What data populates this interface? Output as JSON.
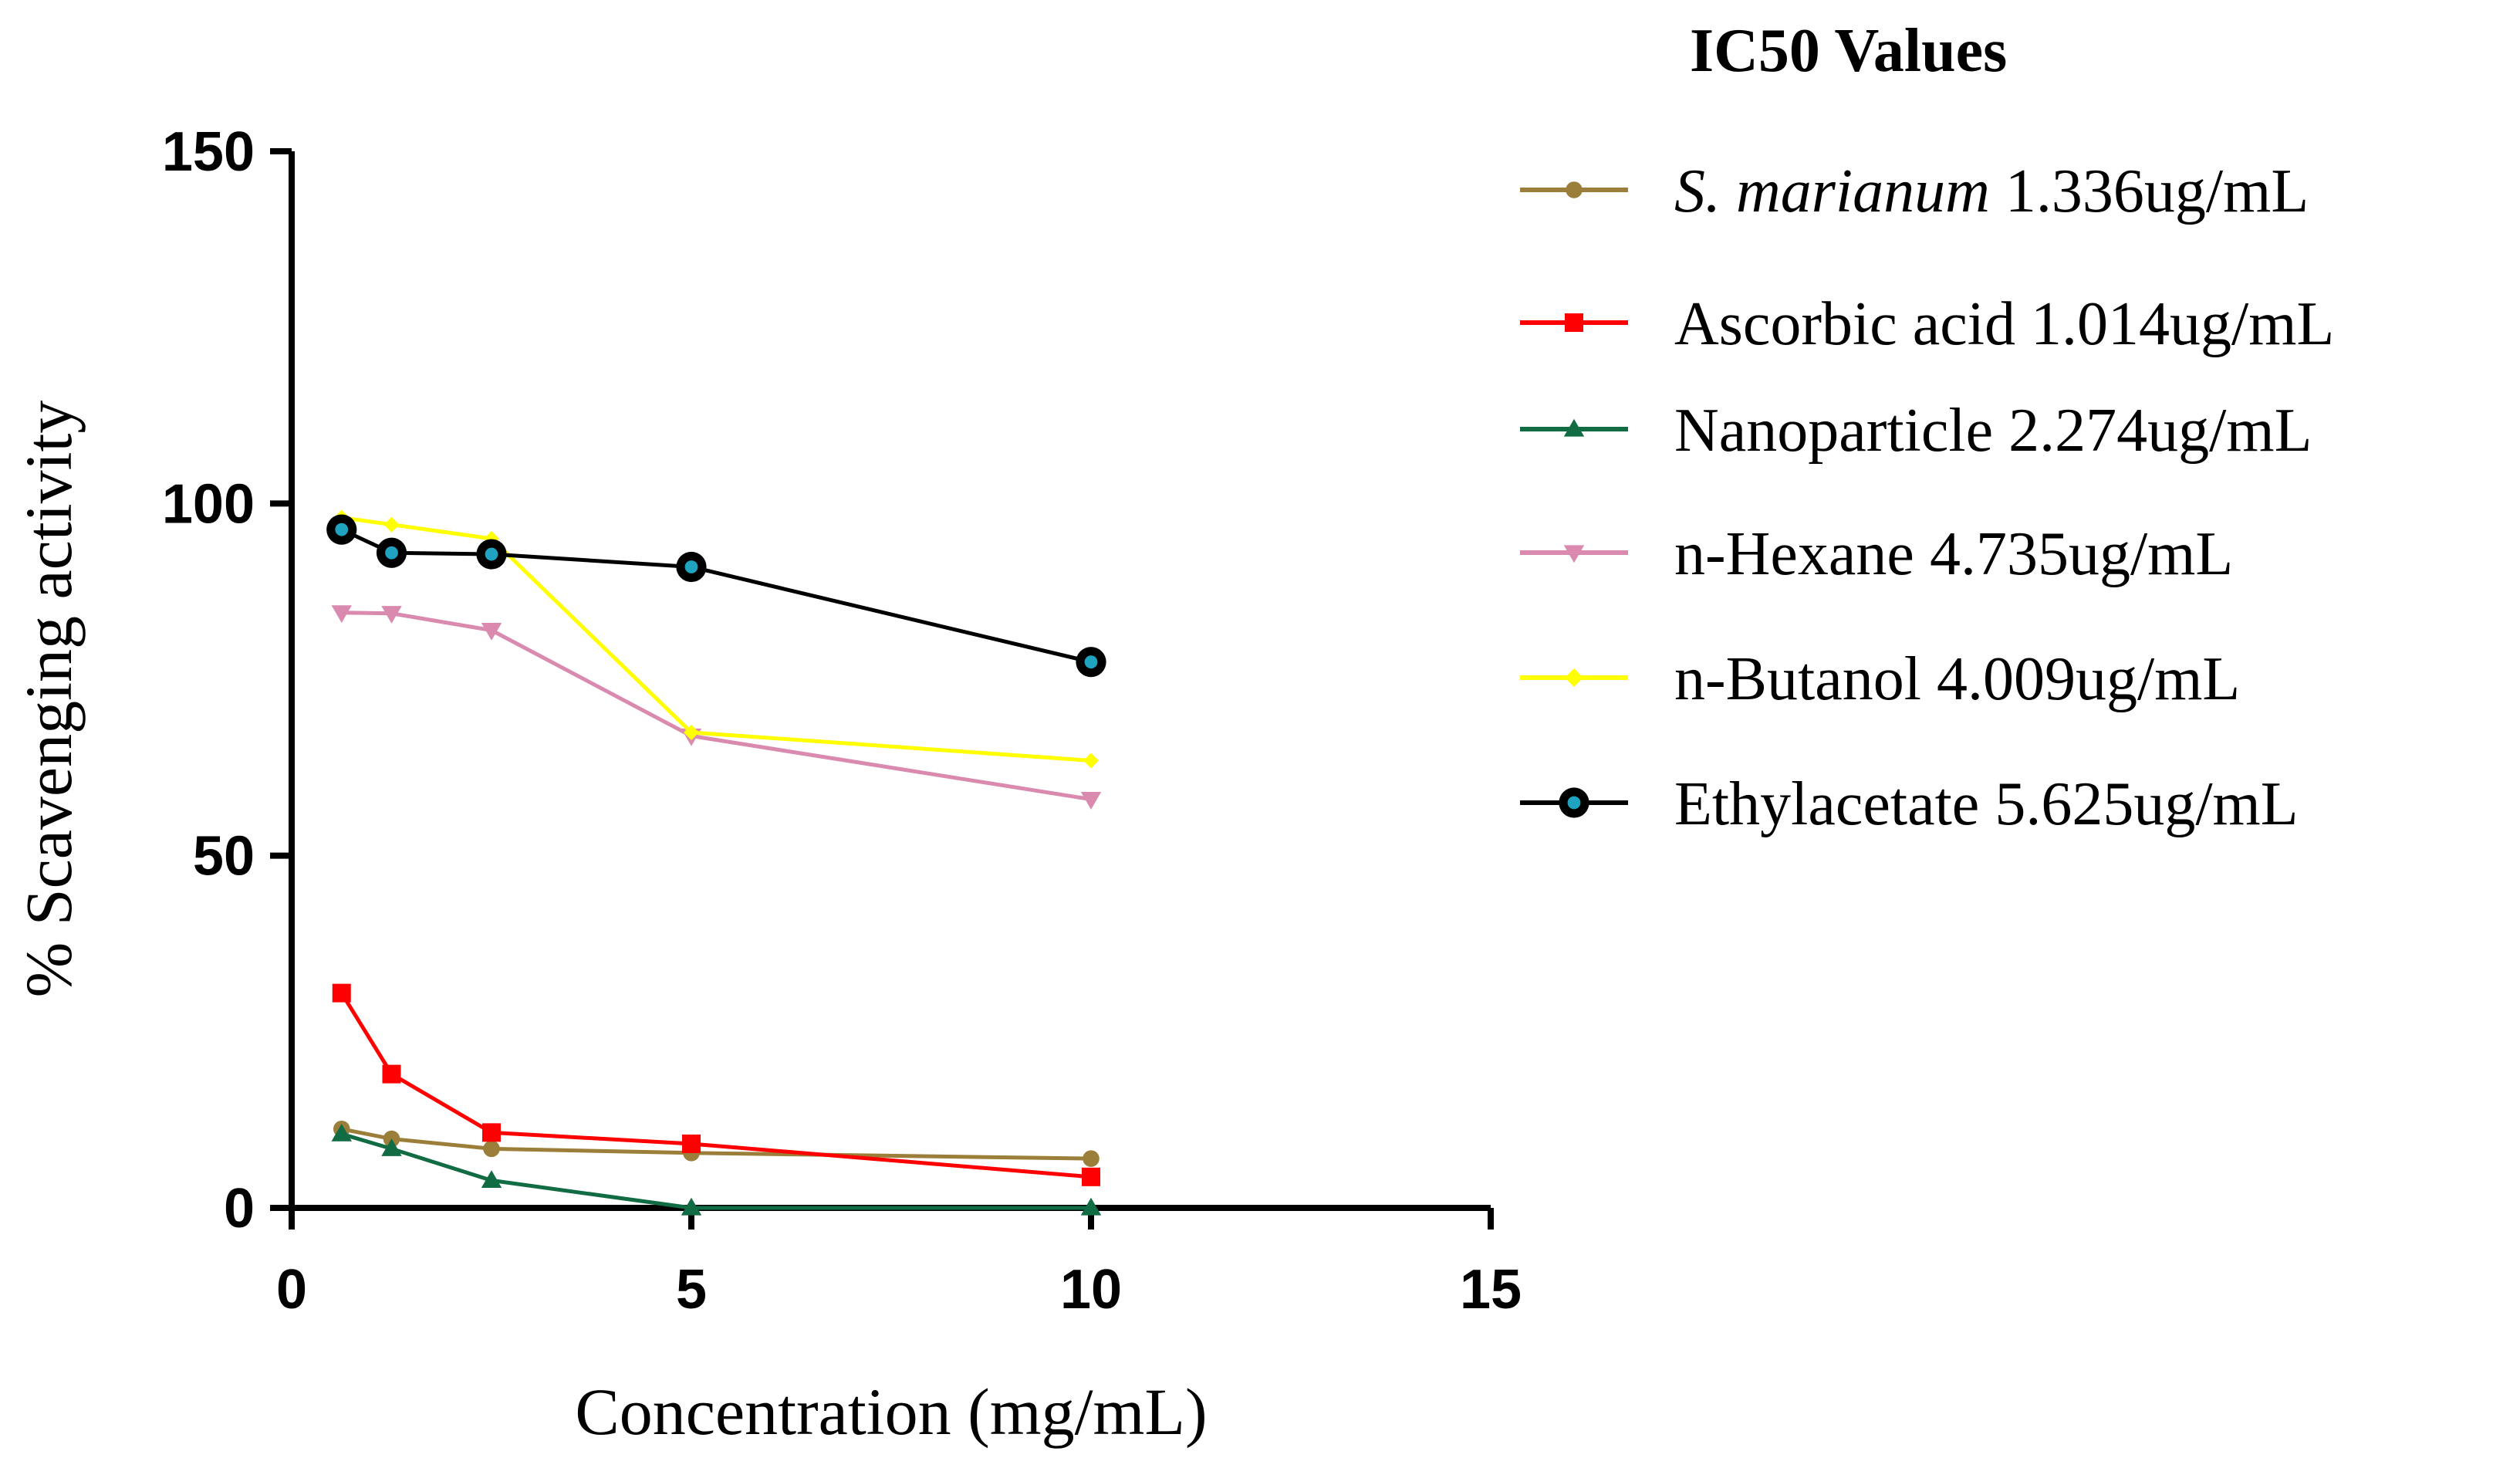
{
  "chart_data": {
    "type": "line",
    "title": "",
    "xlabel": "Concentration (mg/mL)",
    "ylabel": "% Scavenging activity",
    "xlim": [
      0,
      15
    ],
    "ylim": [
      0,
      150
    ],
    "xticks": [
      0,
      5,
      10,
      15
    ],
    "yticks": [
      0,
      50,
      100,
      150
    ],
    "grid": false,
    "legend_title": "IC50 Values",
    "legend_position": "right",
    "x": [
      0.625,
      1.25,
      2.5,
      5,
      10
    ],
    "series": [
      {
        "name_italic": "S. marianum",
        "name": " 1.336ug/mL",
        "color": "#9B7E3A",
        "marker": "circle",
        "values": [
          11.2,
          9.8,
          8.4,
          7.8,
          7.0
        ]
      },
      {
        "name_italic": "",
        "name": "Ascorbic acid 1.014ug/mL",
        "color": "#FF0000",
        "marker": "square",
        "values": [
          30.5,
          19.0,
          10.7,
          9.1,
          4.4
        ]
      },
      {
        "name_italic": "",
        "name": "Nanoparticle 2.274ug/mL",
        "color": "#116B43",
        "marker": "triangle-up",
        "values": [
          10.5,
          8.4,
          3.9,
          0.0,
          0.0
        ]
      },
      {
        "name_italic": "",
        "name": "n-Hexane 4.735ug/mL",
        "color": "#D98AAE",
        "marker": "triangle-down",
        "values": [
          84.5,
          84.4,
          82.0,
          67.0,
          58.0
        ]
      },
      {
        "name_italic": "",
        "name": "n-Butanol 4.009ug/mL",
        "color": "#FFFF00",
        "marker": "diamond",
        "values": [
          98.0,
          97.0,
          95.0,
          67.5,
          63.5
        ]
      },
      {
        "name_italic": "",
        "name": "Ethylacetate 5.625ug/mL",
        "color": "#000000",
        "marker": "ring",
        "values": [
          96.3,
          93.0,
          92.8,
          91.0,
          77.5
        ]
      }
    ]
  }
}
